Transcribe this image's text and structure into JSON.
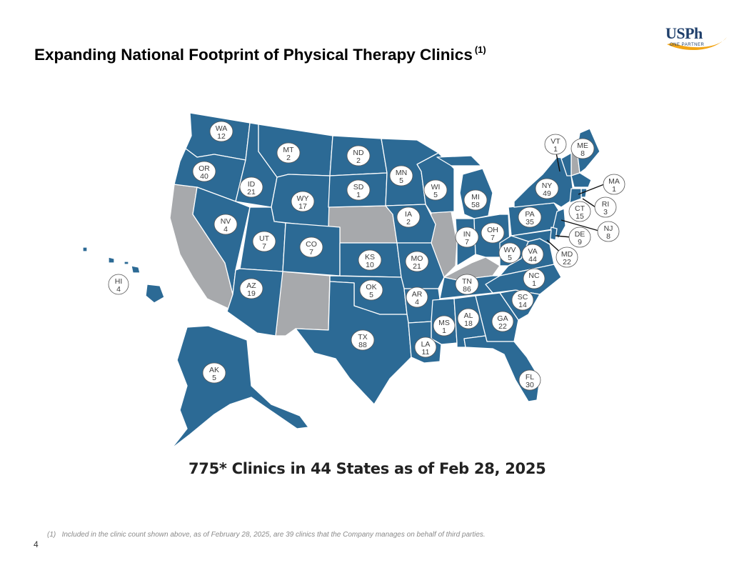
{
  "page": {
    "title": "Expanding National Footprint of Physical Therapy Clinics",
    "title_footnote_ref": "(1)",
    "headline": "775* Clinics in 44 States as of Feb 28, 2025",
    "footnote_marker": "(1)",
    "footnote": "Included in the clinic count shown above, as of February 28, 2025, are 39 clinics that the Company manages on behalf of third parties.",
    "page_number": "4"
  },
  "logo": {
    "wordmark": "USPh",
    "tagline": "ONE PARTNER",
    "colors": {
      "navy": "#1f3f6b",
      "gold": "#f2a516"
    }
  },
  "map": {
    "colors": {
      "active_state": "#2c6a95",
      "inactive_state": "#a7a9ac",
      "border": "#ffffff",
      "label_bg": "#ffffff",
      "label_text": "#3c3c3c"
    },
    "states_with_clinics": [
      {
        "abbr": "WA",
        "count": "12"
      },
      {
        "abbr": "OR",
        "count": "40"
      },
      {
        "abbr": "ID",
        "count": "21"
      },
      {
        "abbr": "MT",
        "count": "2"
      },
      {
        "abbr": "WY",
        "count": "17"
      },
      {
        "abbr": "ND",
        "count": "2"
      },
      {
        "abbr": "SD",
        "count": "1"
      },
      {
        "abbr": "MN",
        "count": "5"
      },
      {
        "abbr": "WI",
        "count": "5"
      },
      {
        "abbr": "MI",
        "count": "58"
      },
      {
        "abbr": "NV",
        "count": "4"
      },
      {
        "abbr": "UT",
        "count": "7"
      },
      {
        "abbr": "CO",
        "count": "7"
      },
      {
        "abbr": "IA",
        "count": "2"
      },
      {
        "abbr": "KS",
        "count": "10"
      },
      {
        "abbr": "MO",
        "count": "21"
      },
      {
        "abbr": "IN",
        "count": "7"
      },
      {
        "abbr": "OH",
        "count": "7"
      },
      {
        "abbr": "PA",
        "count": "35"
      },
      {
        "abbr": "NY",
        "count": "49"
      },
      {
        "abbr": "VT",
        "count": "1"
      },
      {
        "abbr": "ME",
        "count": "8"
      },
      {
        "abbr": "MA",
        "count": "1"
      },
      {
        "abbr": "RI",
        "count": "3"
      },
      {
        "abbr": "CT",
        "count": "15"
      },
      {
        "abbr": "NJ",
        "count": "8"
      },
      {
        "abbr": "DE",
        "count": "9"
      },
      {
        "abbr": "MD",
        "count": "22"
      },
      {
        "abbr": "WV",
        "count": "5"
      },
      {
        "abbr": "VA",
        "count": "44"
      },
      {
        "abbr": "NC",
        "count": "1"
      },
      {
        "abbr": "SC",
        "count": "14"
      },
      {
        "abbr": "TN",
        "count": "86"
      },
      {
        "abbr": "AZ",
        "count": "19"
      },
      {
        "abbr": "OK",
        "count": "5"
      },
      {
        "abbr": "AR",
        "count": "4"
      },
      {
        "abbr": "MS",
        "count": "1"
      },
      {
        "abbr": "AL",
        "count": "18"
      },
      {
        "abbr": "GA",
        "count": "22"
      },
      {
        "abbr": "TX",
        "count": "88"
      },
      {
        "abbr": "LA",
        "count": "11"
      },
      {
        "abbr": "FL",
        "count": "30"
      },
      {
        "abbr": "AK",
        "count": "5"
      },
      {
        "abbr": "HI",
        "count": "4"
      }
    ],
    "states_without_clinics": [
      "CA",
      "NM",
      "NE",
      "IL",
      "KY",
      "NH"
    ]
  }
}
